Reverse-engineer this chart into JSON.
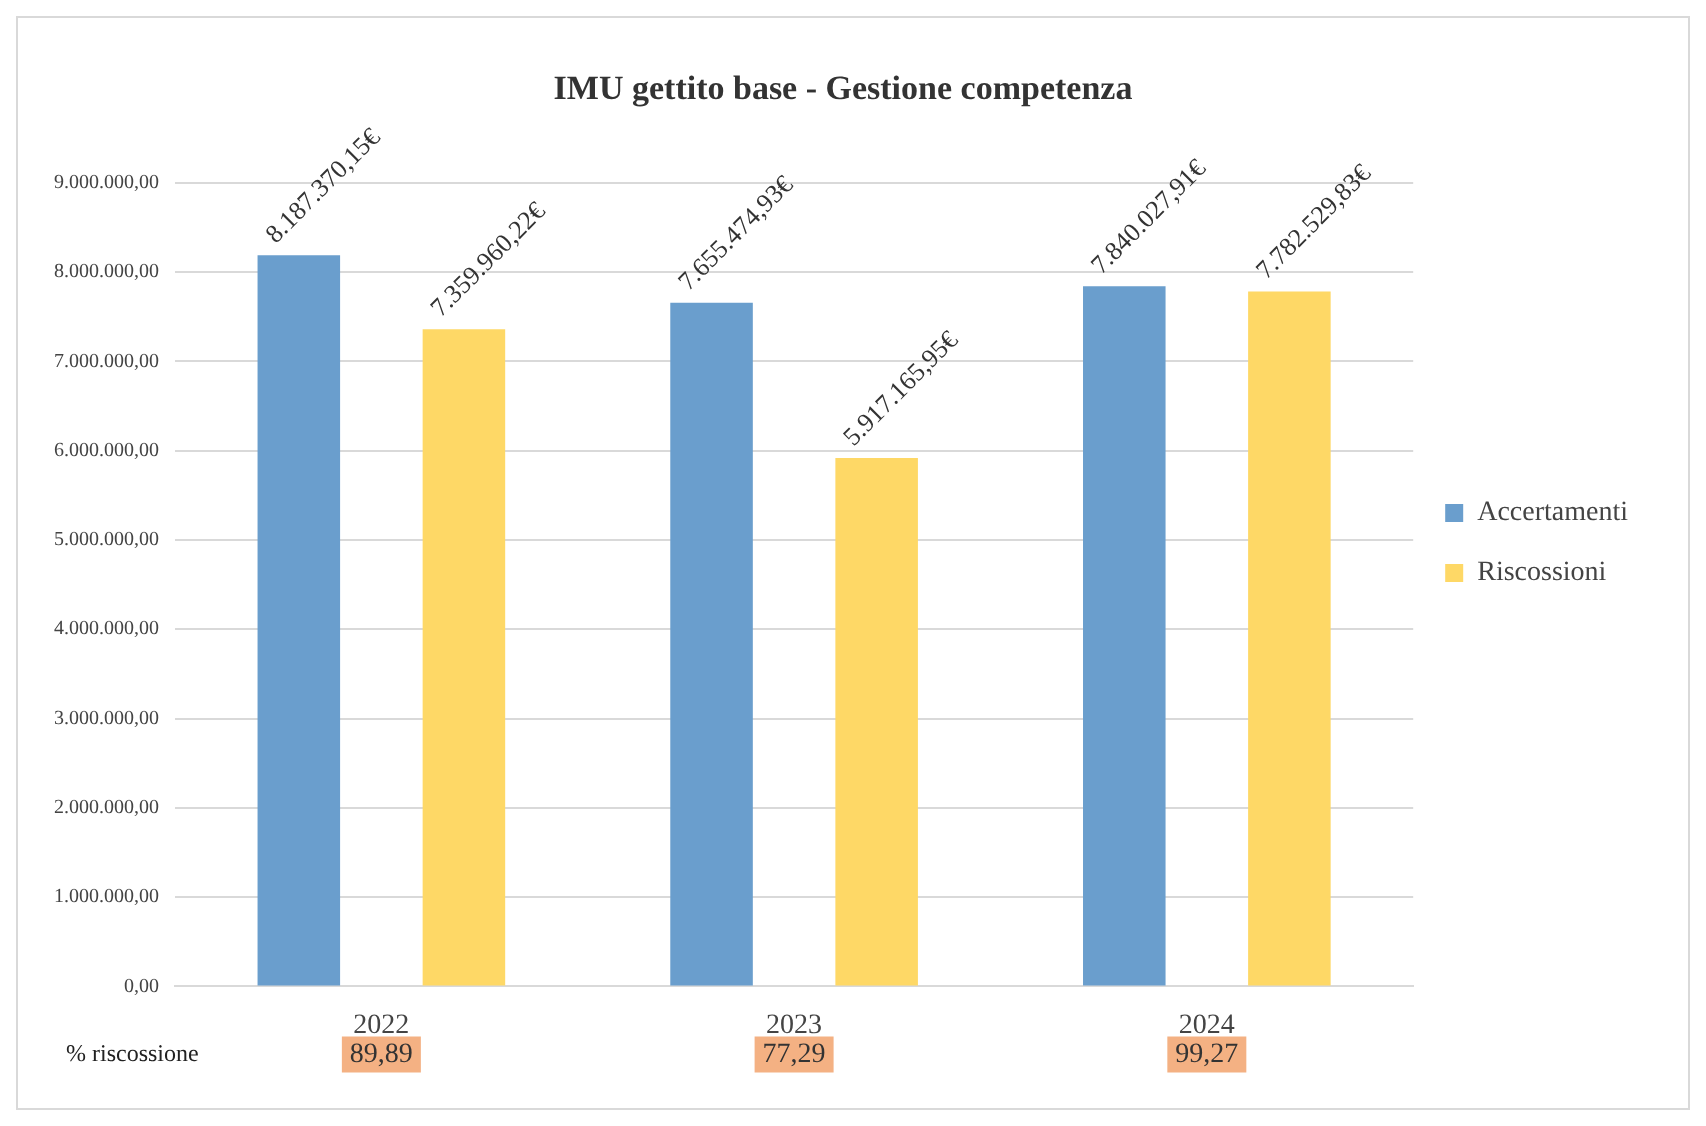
{
  "chart_data": {
    "type": "bar",
    "title": "IMU gettito base - Gestione competenza",
    "categories": [
      "2022",
      "2023",
      "2024"
    ],
    "series": [
      {
        "name": "Accertamenti",
        "color": "#6a9ecd",
        "values": [
          8187370.15,
          7655474.93,
          7840027.91
        ],
        "value_labels": [
          "8.187.370,15€",
          "7.655.474,93€",
          "7.840.027,91€"
        ]
      },
      {
        "name": "Riscossioni",
        "color": "#fed866",
        "values": [
          7359960.22,
          5917165.95,
          7782529.83
        ],
        "value_labels": [
          "7.359.960,22€",
          "5.917.165,95€",
          "7.782.529,83€"
        ]
      }
    ],
    "ylim": [
      0,
      9000000
    ],
    "yticks": [
      {
        "value": 0,
        "label": "0,00"
      },
      {
        "value": 1000000,
        "label": "1.000.000,00"
      },
      {
        "value": 2000000,
        "label": "2.000.000,00"
      },
      {
        "value": 3000000,
        "label": "3.000.000,00"
      },
      {
        "value": 4000000,
        "label": "4.000.000,00"
      },
      {
        "value": 5000000,
        "label": "5.000.000,00"
      },
      {
        "value": 6000000,
        "label": "6.000.000,00"
      },
      {
        "value": 7000000,
        "label": "7.000.000,00"
      },
      {
        "value": 8000000,
        "label": "8.000.000,00"
      },
      {
        "value": 9000000,
        "label": "9.000.000,00"
      }
    ],
    "grid": "y",
    "legend": "right",
    "annotations": [
      "% riscossione",
      "89,89",
      "77,29",
      "99,27"
    ]
  }
}
